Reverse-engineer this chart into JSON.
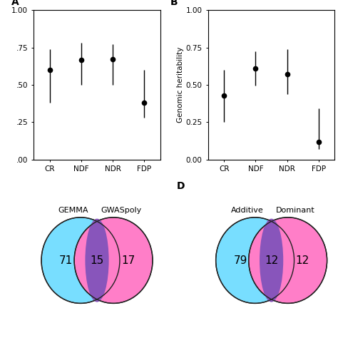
{
  "panel_A": {
    "label": "A",
    "categories": [
      "CR",
      "NDF",
      "NDR",
      "FDP"
    ],
    "means": [
      0.6,
      0.665,
      0.67,
      0.38
    ],
    "yerr_low": [
      0.22,
      0.165,
      0.17,
      0.1
    ],
    "yerr_high": [
      0.14,
      0.115,
      0.1,
      0.22
    ],
    "ylim": [
      0.0,
      1.0
    ],
    "yticks": [
      0.0,
      0.25,
      0.5,
      0.75,
      1.0
    ],
    "yticklabels": [
      ".00",
      ".25",
      ".50",
      ".75",
      "1.00"
    ]
  },
  "panel_B": {
    "label": "B",
    "categories": [
      "CR",
      "NDF",
      "NDR",
      "FDP"
    ],
    "means": [
      0.43,
      0.61,
      0.57,
      0.12
    ],
    "yerr_low": [
      0.18,
      0.115,
      0.13,
      0.05
    ],
    "yerr_high": [
      0.17,
      0.115,
      0.17,
      0.22
    ],
    "ylim": [
      0.0,
      1.0
    ],
    "yticks": [
      0.0,
      0.25,
      0.5,
      0.75,
      1.0
    ],
    "yticklabels": [
      "0.00",
      "0.25",
      "0.50",
      "0.75",
      "1.00"
    ],
    "ylabel": "Genomic heritability"
  },
  "panel_C": {
    "left_label": "GEMMA",
    "right_label": "GWASpoly",
    "left_only": "71",
    "overlap": "15",
    "right_only": "17",
    "left_color": "#78DEFF",
    "right_color": "#FF7EC8",
    "overlap_color": "#8855BB",
    "edge_color": "#222222"
  },
  "panel_D": {
    "label": "D",
    "left_label": "Additive",
    "right_label": "Dominant",
    "left_only": "79",
    "overlap": "12",
    "right_only": "12",
    "left_color": "#78DEFF",
    "right_color": "#FF7EC8",
    "overlap_color": "#8855BB",
    "edge_color": "#222222"
  }
}
